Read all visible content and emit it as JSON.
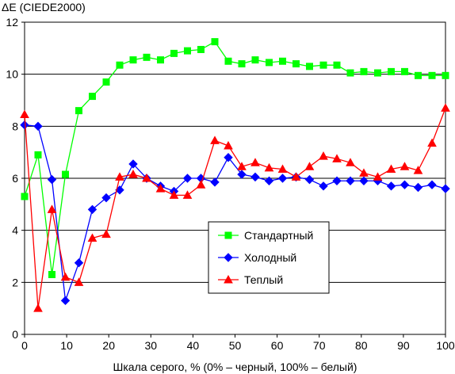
{
  "chart_data": {
    "type": "line",
    "ylabel": "ΔE (CIEDE2000)",
    "xlabel": "Шкала серого, % (0% – черный, 100% – белый)",
    "xlim": [
      0,
      100
    ],
    "ylim": [
      0,
      12
    ],
    "x_ticks": [
      "0",
      "10",
      "20",
      "30",
      "40",
      "50",
      "60",
      "70",
      "80",
      "90",
      "100"
    ],
    "y_ticks": [
      "0",
      "2",
      "4",
      "6",
      "8",
      "10",
      "12"
    ],
    "grid": "horizontal",
    "legend_position": "center-right",
    "x": [
      0,
      3.2,
      6.5,
      9.7,
      12.9,
      16.1,
      19.4,
      22.6,
      25.8,
      29.0,
      32.3,
      35.5,
      38.7,
      41.9,
      45.2,
      48.4,
      51.6,
      54.8,
      58.1,
      61.3,
      64.5,
      67.7,
      71.0,
      74.2,
      77.4,
      80.6,
      83.9,
      87.1,
      90.3,
      93.5,
      96.8,
      100
    ],
    "series": [
      {
        "name": "Стандартный",
        "color": "#00ff00",
        "marker": "square",
        "values": [
          5.3,
          6.9,
          2.3,
          6.15,
          8.6,
          9.15,
          9.7,
          10.35,
          10.55,
          10.65,
          10.55,
          10.8,
          10.9,
          10.95,
          11.25,
          10.5,
          10.4,
          10.55,
          10.45,
          10.5,
          10.4,
          10.3,
          10.35,
          10.35,
          10.05,
          10.1,
          10.05,
          10.1,
          10.1,
          9.95,
          9.95,
          9.95
        ]
      },
      {
        "name": "Холодный",
        "color": "#0000ff",
        "marker": "diamond",
        "values": [
          8.05,
          8.0,
          5.95,
          1.3,
          2.75,
          4.8,
          5.25,
          5.55,
          6.55,
          6.0,
          5.7,
          5.5,
          6.0,
          6.0,
          5.85,
          6.8,
          6.15,
          6.05,
          5.9,
          6.0,
          6.05,
          5.95,
          5.7,
          5.9,
          5.9,
          5.9,
          5.9,
          5.7,
          5.75,
          5.65,
          5.75,
          5.6
        ]
      },
      {
        "name": "Теплый",
        "color": "#ff0000",
        "marker": "triangle",
        "values": [
          8.45,
          1.0,
          4.8,
          2.2,
          2.0,
          3.7,
          3.85,
          6.05,
          6.15,
          6.0,
          5.6,
          5.35,
          5.35,
          5.75,
          7.45,
          7.25,
          6.45,
          6.6,
          6.4,
          6.35,
          6.05,
          6.45,
          6.85,
          6.75,
          6.6,
          6.2,
          6.05,
          6.35,
          6.45,
          6.3,
          7.35,
          8.7
        ]
      }
    ]
  }
}
